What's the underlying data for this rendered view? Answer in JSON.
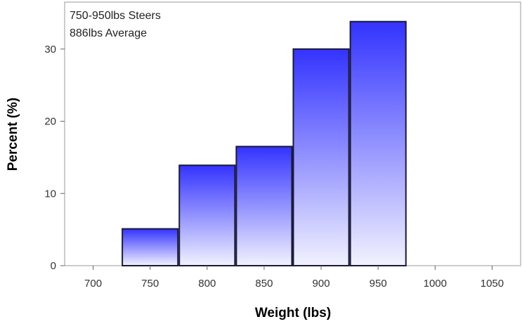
{
  "chart_data": {
    "type": "bar",
    "subtype": "histogram",
    "inset_lines": [
      "750-950lbs Steers",
      "886lbs Average"
    ],
    "xlabel": "Weight (lbs)",
    "ylabel": "Percent (%)",
    "bin_width": 50,
    "x": [
      750,
      800,
      850,
      900,
      950
    ],
    "values": [
      5.1,
      13.9,
      16.5,
      30.0,
      33.8
    ],
    "xlim": [
      675,
      1075
    ],
    "ylim": [
      0,
      36.5
    ],
    "x_ticks": [
      700,
      750,
      800,
      850,
      900,
      950,
      1000,
      1050
    ],
    "y_ticks": [
      0,
      10,
      20,
      30
    ],
    "grid": false,
    "bar_gradient": {
      "top": "#3333ff",
      "bottom": "#f2f2ff"
    },
    "bar_outline": "#1a1a3a",
    "frame_color": "#999999"
  }
}
